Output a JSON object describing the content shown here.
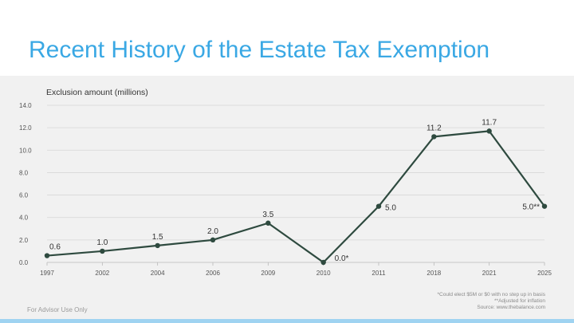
{
  "slide": {
    "title": "Recent History of the Estate Tax Exemption",
    "footer_left": "For Advisor Use Only",
    "notes": [
      "*Could elect $5M or $0 with no step up in basis",
      "**Adjusted for inflation",
      "Source: www.thebalance.com"
    ]
  },
  "colors": {
    "title": "#3aa8e4",
    "line": "#2e4a3f",
    "grid": "#d6d6d6",
    "bottom_bar": "#9fd3f1"
  },
  "chart_data": {
    "type": "line",
    "title": "",
    "ylabel": "Exclusion amount (millions)",
    "xlabel": "",
    "categories": [
      "1997",
      "2002",
      "2004",
      "2006",
      "2009",
      "2010",
      "2011",
      "2018",
      "2021",
      "2025"
    ],
    "series": [
      {
        "values": [
          0.6,
          1.0,
          1.5,
          2.0,
          3.5,
          0.0,
          5.0,
          11.2,
          11.7,
          5.0
        ]
      }
    ],
    "data_labels": [
      "0.6",
      "1.0",
      "1.5",
      "2.0",
      "3.5",
      "0.0*",
      "5.0",
      "11.2",
      "11.7",
      "5.0**"
    ],
    "ylim": [
      0,
      14
    ],
    "yticks": [
      "0.0",
      "2.0",
      "4.0",
      "6.0",
      "8.0",
      "10.0",
      "12.0",
      "14.0"
    ],
    "grid": true
  }
}
